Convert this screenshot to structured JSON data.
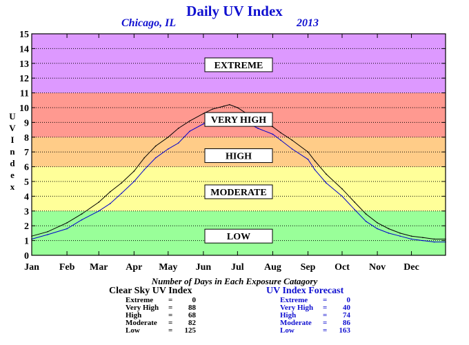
{
  "header": {
    "title": "Daily UV Index",
    "location": "Chicago, IL",
    "year": "2013"
  },
  "axis": {
    "ylabel": "UV Index"
  },
  "chart_data": {
    "type": "line",
    "title": "Daily UV Index",
    "xlabel": "",
    "ylabel": "UV Index",
    "ylim": [
      0,
      15
    ],
    "xlim": [
      1,
      365
    ],
    "x_unit": "day of year",
    "yticks": [
      0,
      1,
      2,
      3,
      4,
      5,
      6,
      7,
      8,
      9,
      10,
      11,
      12,
      13,
      14,
      15
    ],
    "xticks": [
      {
        "label": "Jan",
        "day": 1
      },
      {
        "label": "Feb",
        "day": 32
      },
      {
        "label": "Mar",
        "day": 60
      },
      {
        "label": "Apr",
        "day": 91
      },
      {
        "label": "May",
        "day": 121
      },
      {
        "label": "Jun",
        "day": 152
      },
      {
        "label": "Jul",
        "day": 182
      },
      {
        "label": "Aug",
        "day": 213
      },
      {
        "label": "Sep",
        "day": 244
      },
      {
        "label": "Oct",
        "day": 274
      },
      {
        "label": "Nov",
        "day": 305
      },
      {
        "label": "Dec",
        "day": 335
      }
    ],
    "grid": true,
    "bands": [
      {
        "label": "LOW",
        "from": 0,
        "to": 3,
        "color": "#99ff99"
      },
      {
        "label": "MODERATE",
        "from": 3,
        "to": 6,
        "color": "#ffff99"
      },
      {
        "label": "HIGH",
        "from": 6,
        "to": 8,
        "color": "#ffcc88"
      },
      {
        "label": "VERY HIGH",
        "from": 8,
        "to": 11,
        "color": "#ff9990"
      },
      {
        "label": "EXTREME",
        "from": 11,
        "to": 15,
        "color": "#dd99ff"
      }
    ],
    "band_label_positions": [
      {
        "label": "EXTREME",
        "value": 12.9
      },
      {
        "label": "VERY HIGH",
        "value": 9.2
      },
      {
        "label": "HIGH",
        "value": 6.75
      },
      {
        "label": "MODERATE",
        "value": 4.3
      },
      {
        "label": "LOW",
        "value": 1.3
      }
    ],
    "series": [
      {
        "color": "#000000",
        "x": [
          1,
          15,
          32,
          45,
          60,
          70,
          80,
          91,
          100,
          110,
          121,
          130,
          140,
          152,
          160,
          170,
          175,
          182,
          190,
          200,
          213,
          220,
          230,
          244,
          250,
          260,
          274,
          285,
          295,
          305,
          315,
          325,
          335,
          345,
          355,
          365
        ],
        "values": [
          1.3,
          1.6,
          2.2,
          2.8,
          3.6,
          4.3,
          4.9,
          5.7,
          6.6,
          7.4,
          8.0,
          8.6,
          9.1,
          9.6,
          9.9,
          10.1,
          10.2,
          10.0,
          9.6,
          9.1,
          8.7,
          8.3,
          7.8,
          7.0,
          6.4,
          5.5,
          4.5,
          3.6,
          2.8,
          2.2,
          1.8,
          1.5,
          1.3,
          1.2,
          1.1,
          1.1
        ]
      },
      {
        "color": "#0000cc",
        "x": [
          1,
          15,
          32,
          45,
          60,
          70,
          80,
          91,
          100,
          110,
          121,
          130,
          140,
          152,
          160,
          170,
          175,
          182,
          190,
          200,
          213,
          220,
          230,
          244,
          250,
          260,
          274,
          285,
          295,
          305,
          315,
          325,
          335,
          345,
          355,
          365
        ],
        "values": [
          1.1,
          1.4,
          1.8,
          2.4,
          3.0,
          3.5,
          4.2,
          5.0,
          5.8,
          6.6,
          7.2,
          7.6,
          8.4,
          8.9,
          9.2,
          9.4,
          9.5,
          9.3,
          9.0,
          8.6,
          8.2,
          7.8,
          7.2,
          6.5,
          5.8,
          4.9,
          4.0,
          3.1,
          2.3,
          1.8,
          1.5,
          1.3,
          1.1,
          1.0,
          0.9,
          0.9
        ]
      }
    ]
  },
  "summary": {
    "caption": "Number of Days in Each Exposure Catagory",
    "clear_sky": {
      "title": "Clear Sky UV Index",
      "rows": [
        {
          "label": "Extreme",
          "value": "0"
        },
        {
          "label": "Very High",
          "value": "88"
        },
        {
          "label": "High",
          "value": "68"
        },
        {
          "label": "Moderate",
          "value": "82"
        },
        {
          "label": "Low",
          "value": "125"
        }
      ]
    },
    "forecast": {
      "title": "UV Index Forecast",
      "rows": [
        {
          "label": "Extreme",
          "value": "0"
        },
        {
          "label": "Very High",
          "value": "40"
        },
        {
          "label": "High",
          "value": "74"
        },
        {
          "label": "Moderate",
          "value": "86"
        },
        {
          "label": "Low",
          "value": "163"
        }
      ]
    }
  }
}
